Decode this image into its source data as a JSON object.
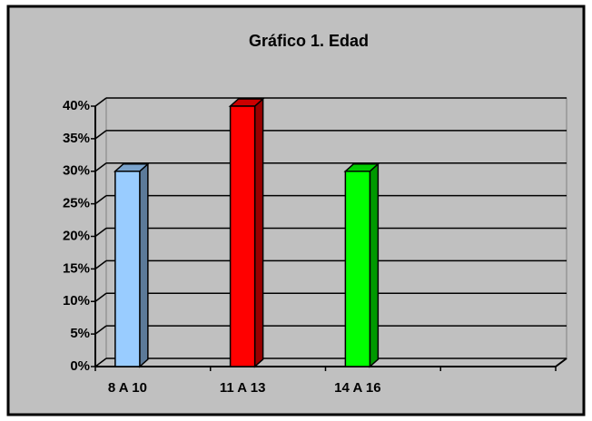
{
  "chart_data": {
    "type": "bar3d",
    "title": "Gráfico 1.  Edad",
    "categories": [
      "8 A 10",
      "11 A 13",
      "14 A 16",
      null
    ],
    "values": [
      30,
      40,
      30,
      null
    ],
    "colors": [
      "#99ccff",
      "#ff0000",
      "#00ff00",
      null
    ],
    "ylim": [
      0,
      40
    ],
    "yticks": [
      {
        "value": 0,
        "label": "0%"
      },
      {
        "value": 5,
        "label": "5%"
      },
      {
        "value": 10,
        "label": "10%"
      },
      {
        "value": 15,
        "label": "15%"
      },
      {
        "value": 20,
        "label": "20%"
      },
      {
        "value": 25,
        "label": "25%"
      },
      {
        "value": 30,
        "label": "30%"
      },
      {
        "value": 35,
        "label": "35%"
      },
      {
        "value": 40,
        "label": "40%"
      }
    ],
    "grid": true
  }
}
